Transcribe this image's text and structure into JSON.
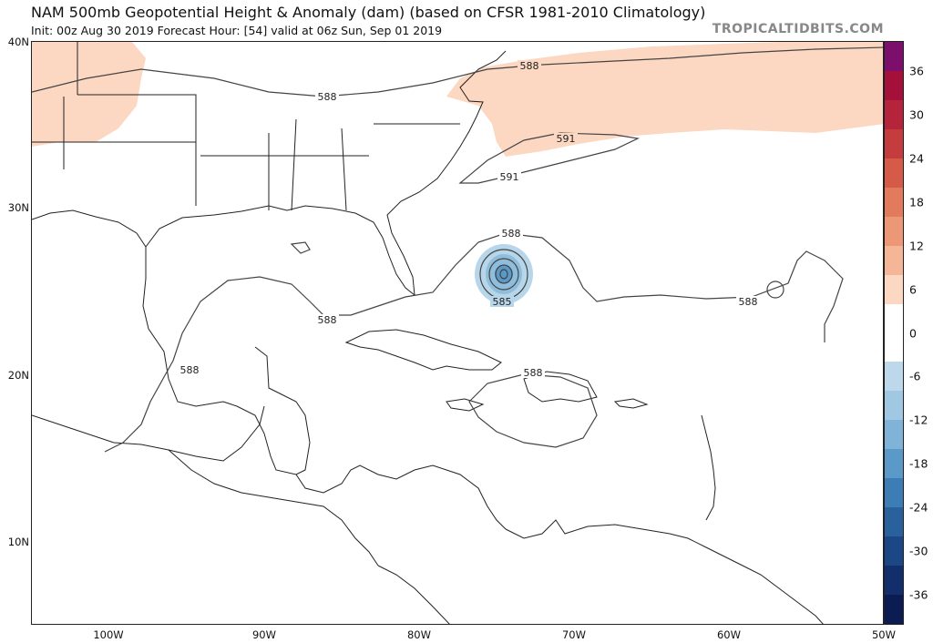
{
  "header": {
    "title": "NAM 500mb Geopotential Height & Anomaly (dam) (based on CFSR 1981-2010 Climatology)",
    "subtitle": "Init: 00z Aug 30 2019   Forecast Hour: [54]   valid at 06z Sun, Sep 01 2019",
    "site": "TROPICALTIDBITS.COM"
  },
  "map": {
    "lat_labels": [
      "40N",
      "30N",
      "20N",
      "10N"
    ],
    "lon_labels": [
      "100W",
      "90W",
      "80W",
      "70W",
      "60W",
      "50W"
    ],
    "contour_labels": [
      "588",
      "588",
      "591",
      "591",
      "588",
      "585",
      "588",
      "588",
      "588",
      "588"
    ],
    "land_color": "#ffffff",
    "ocean_color": "#ffffff",
    "positive_anomaly_color": "#fcd7c1",
    "negative_anomaly_color": "#b7d6ea"
  },
  "colorbar": {
    "labels": [
      "36",
      "30",
      "24",
      "18",
      "12",
      "6",
      "0",
      "-6",
      "-12",
      "-18",
      "-24",
      "-30",
      "-36"
    ],
    "colors": [
      "#7b0f6b",
      "#a5103a",
      "#b5243b",
      "#c53c3e",
      "#d65a48",
      "#e27a5c",
      "#ec9877",
      "#f4b697",
      "#fcd7c1",
      "#ffffff",
      "#ffffff",
      "#bcd8ea",
      "#a0c8e2",
      "#7fb3d7",
      "#5a99c8",
      "#3b7db4",
      "#29619c",
      "#1b4784",
      "#122f6b",
      "#0b1c52"
    ]
  }
}
